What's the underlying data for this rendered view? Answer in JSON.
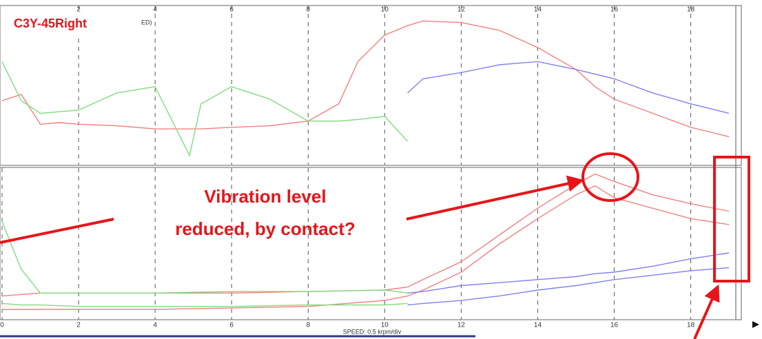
{
  "chart_data": [
    {
      "type": "line",
      "title": "C3Y-45Right",
      "header_fragment": "ED)",
      "x": [
        0,
        0.5,
        1,
        1.5,
        2,
        3,
        4,
        4.9,
        5.2,
        6,
        7,
        8,
        8.8,
        9.3,
        10,
        10.6,
        11,
        12,
        13,
        14,
        15,
        15.5,
        16,
        17,
        18,
        19
      ],
      "series": [
        {
          "color": "#f08080",
          "values": [
            40,
            44,
            25,
            26,
            25,
            24,
            22,
            22,
            22,
            23,
            24,
            27,
            38,
            65,
            82,
            88,
            91,
            90,
            85,
            74,
            60,
            49,
            41,
            32,
            23,
            17
          ]
        },
        {
          "color": "#7edc7e",
          "values": [
            65,
            40,
            32,
            33,
            34,
            45,
            49,
            5,
            38,
            49,
            41,
            27,
            27,
            28,
            30,
            14,
            null,
            null,
            null,
            null,
            null,
            null,
            null,
            null,
            null,
            null
          ]
        },
        {
          "color": "#8080f0",
          "values": [
            null,
            null,
            null,
            null,
            null,
            null,
            null,
            null,
            null,
            null,
            null,
            null,
            null,
            null,
            null,
            45,
            54,
            58,
            63,
            65,
            60,
            57,
            54,
            45,
            38,
            32
          ]
        }
      ],
      "xlim": [
        0,
        19.25
      ],
      "xticks": [
        2,
        4,
        6,
        8,
        10,
        12,
        14,
        16,
        18
      ],
      "ylim": [
        0,
        100
      ],
      "grid": true
    },
    {
      "type": "line",
      "xlabel": "SPEED: 0.5 krpm/div",
      "annotation": [
        "Vibration level",
        "reduced, by contact?"
      ],
      "x": [
        0,
        0.5,
        1,
        2,
        4,
        6,
        8,
        10,
        10.6,
        11,
        12,
        13,
        14,
        15,
        15.5,
        16,
        17,
        18,
        19
      ],
      "series": [
        {
          "color": "#f08080",
          "values": [
            15,
            16,
            17,
            17,
            17,
            17,
            18,
            19,
            21,
            26,
            38,
            56,
            74,
            90,
            97,
            92,
            83,
            77,
            72
          ]
        },
        {
          "color": "#f08080",
          "values": [
            6,
            6,
            6,
            6,
            6,
            7,
            8,
            12,
            15,
            19,
            31,
            50,
            67,
            83,
            89,
            81,
            74,
            67,
            63
          ]
        },
        {
          "color": "#7edc7e",
          "values": [
            65,
            33,
            17,
            17,
            17,
            18,
            18,
            19,
            17,
            null,
            null,
            null,
            null,
            null,
            null,
            null,
            null,
            null,
            null
          ]
        },
        {
          "color": "#7edc7e",
          "values": [
            10,
            9,
            9,
            8,
            8,
            8,
            9,
            9,
            10,
            null,
            null,
            null,
            null,
            null,
            null,
            null,
            null,
            null,
            null
          ]
        },
        {
          "color": "#8080f0",
          "values": [
            null,
            null,
            null,
            null,
            null,
            null,
            null,
            null,
            17,
            18,
            22,
            24,
            26,
            28,
            30,
            31,
            35,
            40,
            44
          ]
        },
        {
          "color": "#8080f0",
          "values": [
            null,
            null,
            null,
            null,
            null,
            null,
            null,
            null,
            9,
            10,
            12,
            15,
            19,
            22,
            24,
            26,
            29,
            32,
            34
          ]
        }
      ],
      "xlim": [
        0,
        19.25
      ],
      "xticks": [
        0,
        2,
        4,
        6,
        8,
        10,
        12,
        14,
        16,
        18
      ],
      "ylim": [
        0,
        100
      ],
      "grid": true
    }
  ]
}
